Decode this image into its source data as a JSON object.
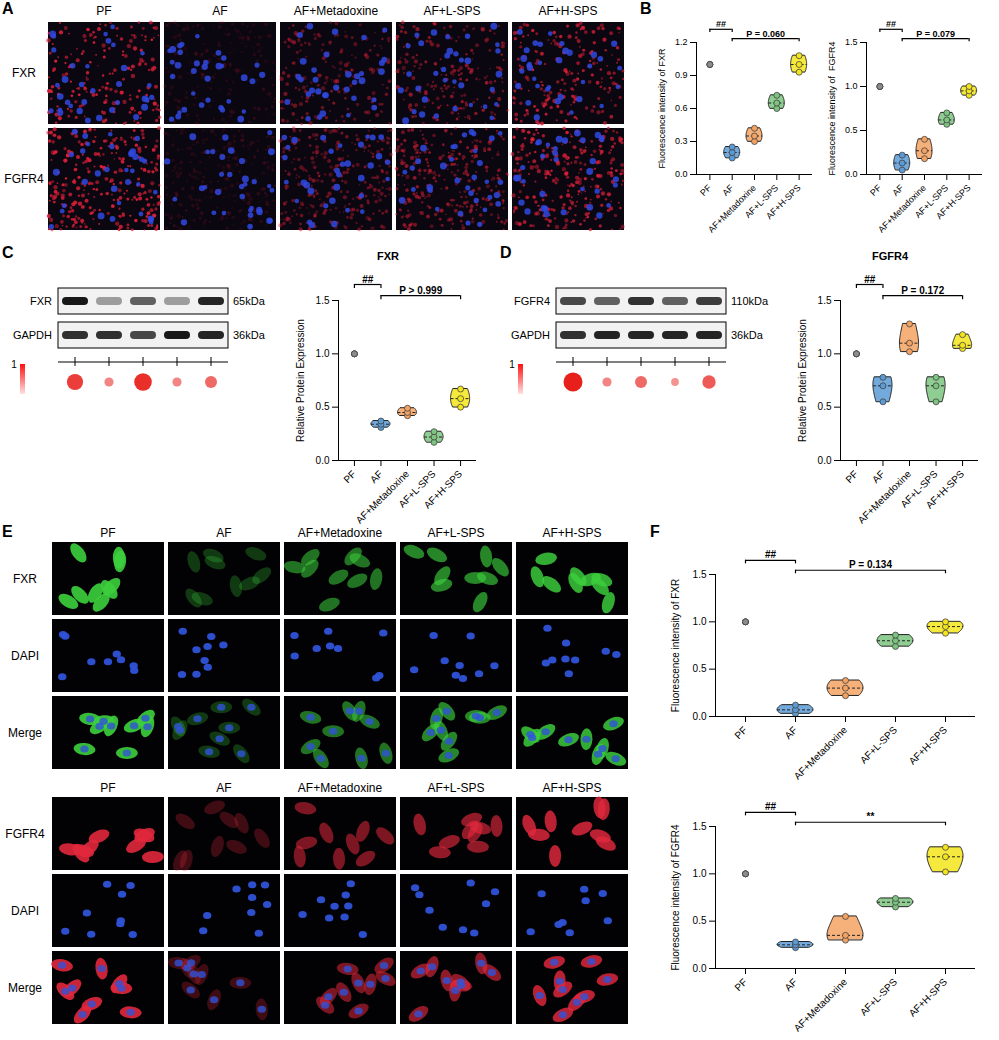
{
  "figure": {
    "A": {
      "letter": "A",
      "columns": [
        "PF",
        "AF",
        "AF+Metadoxine",
        "AF+L-SPS",
        "AF+H-SPS"
      ],
      "rows": [
        "FXR",
        "FGFR4"
      ]
    },
    "B": {
      "letter": "B"
    },
    "C": {
      "letter": "C",
      "blot": {
        "bands": [
          {
            "label": "FXR",
            "size": "65kDa",
            "intensity": [
              0.9,
              0.35,
              0.6,
              0.35,
              0.85
            ]
          },
          {
            "label": "GAPDH",
            "size": "36kDa",
            "intensity": [
              0.8,
              0.8,
              0.7,
              0.9,
              0.85
            ]
          }
        ],
        "scale_label": "1",
        "dots": [
          0.8,
          0.3,
          0.9,
          0.3,
          0.5
        ]
      }
    },
    "D": {
      "letter": "D",
      "blot": {
        "bands": [
          {
            "label": "FGFR4",
            "size": "110kDa",
            "intensity": [
              0.7,
              0.6,
              0.8,
              0.6,
              0.75
            ]
          },
          {
            "label": "GAPDH",
            "size": "36kDa",
            "intensity": [
              0.8,
              0.85,
              0.85,
              0.85,
              0.85
            ]
          }
        ],
        "scale_label": "1",
        "dots": [
          1,
          0.3,
          0.5,
          0.2,
          0.6
        ]
      }
    },
    "E": {
      "letter": "E",
      "groups": [
        {
          "columns": [
            "PF",
            "AF",
            "AF+Metadoxine",
            "AF+L-SPS",
            "AF+H-SPS"
          ],
          "rows": [
            "FXR",
            "DAPI",
            "Merge"
          ]
        },
        {
          "columns": [
            "PF",
            "AF",
            "AF+Metadoxine",
            "AF+L-SPS",
            "AF+H-SPS"
          ],
          "rows": [
            "FGFR4",
            "DAPI",
            "Merge"
          ]
        }
      ]
    },
    "F": {
      "letter": "F"
    }
  },
  "chart_data": [
    {
      "type": "violin",
      "y_label": "Fluorescence intensity of FXR",
      "categories": [
        "PF",
        "AF",
        "AF+Metadoxine",
        "AF+L-SPS",
        "AF+H-SPS"
      ],
      "colors": [
        "#8c8c8c",
        "#5b9bd5",
        "#f4a261",
        "#7cc47f",
        "#f5e51b"
      ],
      "values": [
        [
          1,
          1,
          1
        ],
        [
          0.15,
          0.2,
          0.25
        ],
        [
          0.3,
          0.35,
          0.42
        ],
        [
          0.6,
          0.65,
          0.72
        ],
        [
          0.93,
          1.0,
          1.08
        ]
      ],
      "ylim": [
        0,
        1.2
      ],
      "yticks": [
        {
          "value": 0,
          "label": "0.0"
        },
        0.3,
        0.6,
        0.9,
        1.2
      ],
      "annotations": [
        {
          "text": "##",
          "from": "PF",
          "to": "AF"
        },
        {
          "text": "P = 0.060",
          "from": "AF",
          "to": "AF+H-SPS"
        }
      ]
    },
    {
      "type": "violin",
      "y_label": "Fluorescence intensity of  FGFR4",
      "categories": [
        "PF",
        "AF",
        "AF+Metadoxine",
        "AF+L-SPS",
        "AF+H-SPS"
      ],
      "colors": [
        "#8c8c8c",
        "#5b9bd5",
        "#f4a261",
        "#7cc47f",
        "#f5e51b"
      ],
      "values": [
        [
          1,
          1,
          1
        ],
        [
          0.05,
          0.13,
          0.22
        ],
        [
          0.18,
          0.27,
          0.4
        ],
        [
          0.57,
          0.62,
          0.7
        ],
        [
          0.9,
          0.95,
          1.0
        ]
      ],
      "ylim": [
        0,
        1.5
      ],
      "yticks": [
        {
          "value": 0,
          "label": "0.0"
        },
        0.5,
        {
          "value": 1,
          "label": "1.0"
        },
        1.5
      ],
      "annotations": [
        {
          "text": "##",
          "from": "PF",
          "to": "AF"
        },
        {
          "text": "P = 0.079",
          "from": "AF",
          "to": "AF+H-SPS"
        }
      ]
    },
    {
      "type": "violin",
      "title": "FXR",
      "y_label": "Relative Protein Expression",
      "categories": [
        "PF",
        "AF",
        "AF+Metadoxine",
        "AF+L-SPS",
        "AF+H-SPS"
      ],
      "colors": [
        "#8c8c8c",
        "#5b9bd5",
        "#f4a261",
        "#7cc47f",
        "#f5e51b"
      ],
      "values": [
        [
          1,
          1,
          1
        ],
        [
          0.31,
          0.34,
          0.37
        ],
        [
          0.42,
          0.45,
          0.49
        ],
        [
          0.17,
          0.22,
          0.27
        ],
        [
          0.5,
          0.58,
          0.67
        ]
      ],
      "ylim": [
        0,
        1.5
      ],
      "yticks": [
        {
          "value": 0,
          "label": "0.0"
        },
        0.5,
        {
          "value": 1,
          "label": "1.0"
        },
        1.5
      ],
      "annotations": [
        {
          "text": "##",
          "from": "PF",
          "to": "AF"
        },
        {
          "text": "P > 0.999",
          "from": "AF",
          "to": "AF+H-SPS"
        }
      ]
    },
    {
      "type": "violin",
      "title": "FGFR4",
      "y_label": "Relative Protein Expression",
      "categories": [
        "PF",
        "AF",
        "AF+Metadoxine",
        "AF+L-SPS",
        "AF+H-SPS"
      ],
      "colors": [
        "#8c8c8c",
        "#5b9bd5",
        "#f4a261",
        "#7cc47f",
        "#f5e51b"
      ],
      "values": [
        [
          1,
          1,
          1
        ],
        [
          0.55,
          0.7,
          0.78
        ],
        [
          1.02,
          1.1,
          1.28
        ],
        [
          0.55,
          0.7,
          0.78
        ],
        [
          1.05,
          1.08,
          1.18
        ]
      ],
      "ylim": [
        0,
        1.5
      ],
      "yticks": [
        {
          "value": 0,
          "label": "0.0"
        },
        0.5,
        {
          "value": 1,
          "label": "1.0"
        },
        1.5
      ],
      "annotations": [
        {
          "text": "##",
          "from": "PF",
          "to": "AF"
        },
        {
          "text": "P = 0.172",
          "from": "AF",
          "to": "AF+H-SPS"
        }
      ]
    },
    {
      "type": "violin",
      "y_label": "Fluorescence intensity of FXR",
      "categories": [
        "PF",
        "AF",
        "AF+Metadoxine",
        "AF+L-SPS",
        "AF+H-SPS"
      ],
      "colors": [
        "#8c8c8c",
        "#5b9bd5",
        "#f4a261",
        "#7cc47f",
        "#f5e51b"
      ],
      "values": [
        [
          1,
          1,
          1
        ],
        [
          0.03,
          0.07,
          0.12
        ],
        [
          0.22,
          0.3,
          0.38
        ],
        [
          0.74,
          0.8,
          0.86
        ],
        [
          0.88,
          0.95,
          1.0
        ]
      ],
      "ylim": [
        0,
        1.5
      ],
      "yticks": [
        {
          "value": 0,
          "label": "0.0"
        },
        0.5,
        {
          "value": 1,
          "label": "1.0"
        },
        1.5
      ],
      "annotations": [
        {
          "text": "##",
          "from": "PF",
          "to": "AF"
        },
        {
          "text": "P = 0.134",
          "from": "AF",
          "to": "AF+H-SPS"
        }
      ]
    },
    {
      "type": "violin",
      "y_label": "Fluorescence intensity of FGFR4",
      "categories": [
        "PF",
        "AF",
        "AF+Metadoxine",
        "AF+L-SPS",
        "AF+H-SPS"
      ],
      "colors": [
        "#8c8c8c",
        "#5b9bd5",
        "#f4a261",
        "#7cc47f",
        "#f5e51b"
      ],
      "values": [
        [
          1,
          1,
          1
        ],
        [
          0.22,
          0.25,
          0.28
        ],
        [
          0.3,
          0.35,
          0.55
        ],
        [
          0.65,
          0.7,
          0.74
        ],
        [
          1.02,
          1.18,
          1.28
        ]
      ],
      "ylim": [
        0,
        1.5
      ],
      "yticks": [
        {
          "value": 0,
          "label": "0.0"
        },
        0.5,
        {
          "value": 1,
          "label": "1.0"
        },
        1.5
      ],
      "annotations": [
        {
          "text": "##",
          "from": "PF",
          "to": "AF"
        },
        {
          "text": "**",
          "from": "AF",
          "to": "AF+H-SPS"
        }
      ]
    }
  ]
}
